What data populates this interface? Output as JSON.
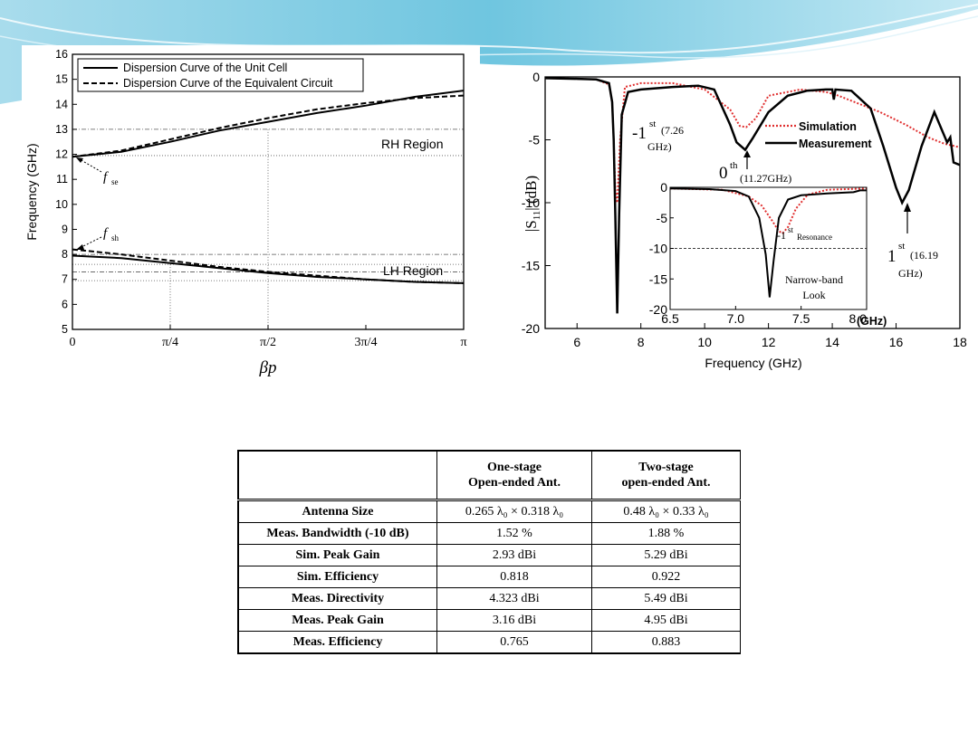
{
  "theme": {
    "banner_colors": [
      "#bfe6f2",
      "#6cc4dd",
      "#2f9fc4"
    ]
  },
  "chart_data": [
    {
      "type": "line",
      "xlabel": "βp",
      "ylabel": "Frequency (GHz)",
      "x_tick_labels": [
        "0",
        "π/4",
        "π/2",
        "3π/4",
        "π"
      ],
      "x_ticks": [
        0,
        0.7854,
        1.5708,
        2.3562,
        3.1416
      ],
      "ylim": [
        5,
        16
      ],
      "xlim": [
        0,
        3.1416
      ],
      "y_ticks": [
        5,
        6,
        7,
        8,
        9,
        10,
        11,
        12,
        13,
        14,
        15,
        16
      ],
      "legend": [
        "Dispersion Curve of the Unit Cell",
        "Dispersion Curve of the Equivalent Circuit"
      ],
      "legend_position": "top-left",
      "annotations": {
        "rh": "RH Region",
        "lh": "LH Region",
        "fse": "se",
        "fsh": "sh",
        "f": "f"
      },
      "series": [
        {
          "name": "Dispersion Curve of the Unit Cell",
          "style": "solid",
          "branches": [
            {
              "x": [
                0,
                0.3927,
                0.7854,
                1.1781,
                1.5708,
                1.9635,
                2.3562,
                2.7489,
                3.1416
              ],
              "y": [
                11.9,
                12.1,
                12.5,
                12.95,
                13.3,
                13.65,
                13.95,
                14.3,
                14.55
              ]
            },
            {
              "x": [
                0,
                0.3927,
                0.7854,
                1.1781,
                1.5708,
                1.9635,
                2.3562,
                2.7489,
                3.1416
              ],
              "y": [
                7.95,
                7.85,
                7.65,
                7.45,
                7.25,
                7.1,
                7.0,
                6.9,
                6.85
              ]
            }
          ]
        },
        {
          "name": "Dispersion Curve of the Equivalent Circuit",
          "style": "dashed",
          "branches": [
            {
              "x": [
                0,
                0.3927,
                0.7854,
                1.1781,
                1.5708,
                1.9635,
                2.3562,
                2.7489,
                3.1416
              ],
              "y": [
                11.9,
                12.15,
                12.6,
                13.05,
                13.45,
                13.8,
                14.05,
                14.25,
                14.35
              ]
            },
            {
              "x": [
                0,
                0.3927,
                0.7854,
                1.1781,
                1.5708,
                1.9635,
                2.3562,
                2.7489,
                3.1416
              ],
              "y": [
                8.2,
                8.0,
                7.75,
                7.5,
                7.3,
                7.15,
                7.0,
                6.9,
                6.85
              ]
            }
          ]
        }
      ],
      "reference_lines_y": [
        13.0,
        11.95,
        8.0,
        7.6,
        7.3,
        6.95
      ],
      "reference_lines_x": [
        0.7854,
        1.5708
      ]
    },
    {
      "type": "line",
      "xlabel": "Frequency (GHz)",
      "ylabel": "|S11| (dB)",
      "ylabel_parts": {
        "main": "|S",
        "sub": "11",
        "end": "| (dB)"
      },
      "xlim": [
        5,
        18
      ],
      "ylim": [
        -20,
        0
      ],
      "x_ticks": [
        6,
        8,
        10,
        12,
        14,
        16,
        18
      ],
      "y_ticks": [
        0,
        -5,
        -10,
        -15,
        -20
      ],
      "legend": [
        "Simulation",
        "Measurement"
      ],
      "legend_position": "top-right",
      "annotations": [
        {
          "text_main": "-1",
          "sup": "st",
          "detail": "(7.26",
          "detail2": "GHz)"
        },
        {
          "text_main": "0",
          "sup": "th",
          "detail": "(11.27GHz)"
        },
        {
          "text_main": "1",
          "sup": "st",
          "detail": "(16.19",
          "detail2": "GHz)"
        }
      ],
      "series": [
        {
          "name": "Measurement",
          "color": "#000000",
          "x": [
            5.0,
            6.0,
            6.6,
            7.0,
            7.1,
            7.15,
            7.2,
            7.26,
            7.32,
            7.4,
            7.6,
            8.0,
            9.0,
            9.8,
            10.3,
            10.8,
            11.0,
            11.27,
            11.5,
            12.0,
            12.6,
            13.2,
            13.8,
            14.0,
            14.05,
            14.1,
            14.6,
            15.2,
            15.6,
            16.0,
            16.19,
            16.4,
            16.8,
            17.2,
            17.6,
            17.7,
            17.8,
            18.0
          ],
          "y": [
            -0.1,
            -0.15,
            -0.2,
            -0.5,
            -2.0,
            -5.0,
            -11.0,
            -18.8,
            -11.0,
            -3.0,
            -1.2,
            -1.0,
            -0.8,
            -0.7,
            -1.0,
            -3.8,
            -5.2,
            -5.8,
            -4.9,
            -2.8,
            -1.5,
            -1.1,
            -1.0,
            -1.0,
            -1.8,
            -1.0,
            -1.1,
            -2.5,
            -5.5,
            -8.8,
            -10.0,
            -9.0,
            -5.5,
            -2.8,
            -5.2,
            -4.8,
            -6.8,
            -7.0
          ]
        },
        {
          "name": "Simulation",
          "color": "#e03030",
          "x": [
            5.0,
            6.0,
            6.6,
            7.0,
            7.1,
            7.15,
            7.2,
            7.26,
            7.35,
            7.5,
            8.0,
            9.0,
            10.0,
            10.8,
            11.1,
            11.3,
            11.6,
            12.0,
            13.0,
            13.8,
            14.1,
            14.5,
            15.5,
            16.3,
            17.0,
            17.5,
            18.0
          ],
          "y": [
            -0.1,
            -0.15,
            -0.2,
            -0.6,
            -2.0,
            -5.0,
            -9.0,
            -10.0,
            -5.0,
            -0.8,
            -0.5,
            -0.5,
            -1.0,
            -2.6,
            -3.9,
            -4.0,
            -3.3,
            -1.5,
            -1.0,
            -1.2,
            -1.4,
            -1.8,
            -2.8,
            -3.8,
            -4.8,
            -5.3,
            -5.6
          ]
        }
      ],
      "inset": {
        "xlim": [
          6.5,
          8.0
        ],
        "ylim": [
          -20,
          0
        ],
        "x_ticks": [
          6.5,
          7.0,
          7.5,
          8.0
        ],
        "x_tick_labels": [
          "6.5",
          "7.0",
          "7.5",
          "8.0"
        ],
        "y_ticks": [
          0,
          -5,
          -10,
          -15,
          -20
        ],
        "x_unit": "(GHz)",
        "reference_line_y": -10,
        "labels": {
          "res_main": "-1",
          "res_sup": "st",
          "res_word": "Resonance",
          "note1": "Narrow-band",
          "note2": "Look"
        },
        "series": [
          {
            "name": "Measurement",
            "color": "#000000",
            "x": [
              6.5,
              6.8,
              7.0,
              7.1,
              7.18,
              7.23,
              7.26,
              7.29,
              7.33,
              7.4,
              7.5,
              7.7,
              7.9,
              7.95,
              8.0
            ],
            "y": [
              -0.2,
              -0.3,
              -0.6,
              -1.5,
              -5.0,
              -11.0,
              -18.0,
              -12.0,
              -5.0,
              -2.0,
              -1.3,
              -1.0,
              -0.8,
              -0.5,
              -0.5
            ]
          },
          {
            "name": "Simulation",
            "color": "#e03030",
            "x": [
              6.5,
              6.9,
              7.1,
              7.2,
              7.28,
              7.33,
              7.36,
              7.4,
              7.46,
              7.55,
              7.7,
              8.0
            ],
            "y": [
              -0.2,
              -0.4,
              -1.5,
              -3.0,
              -5.5,
              -7.2,
              -7.5,
              -6.5,
              -3.5,
              -1.2,
              -0.4,
              -0.2
            ]
          }
        ]
      }
    }
  ],
  "table": {
    "headers": [
      {
        "l1": "",
        "l2": ""
      },
      {
        "l1": "One-stage",
        "l2": "Open-ended Ant."
      },
      {
        "l1": "Two-stage",
        "l2": "open-ended Ant."
      }
    ],
    "rows": [
      {
        "label": "Antenna Size",
        "c1": "0.265 λ₀ × 0.318 λ₀",
        "c2": "0.48 λ₀ × 0.33 λ₀"
      },
      {
        "label": "Meas. Bandwidth (-10 dB)",
        "c1": "1.52 %",
        "c2": "1.88 %"
      },
      {
        "label": "Sim. Peak Gain",
        "c1": "2.93 dBi",
        "c2": "5.29 dBi"
      },
      {
        "label": "Sim. Efficiency",
        "c1": "0.818",
        "c2": "0.922"
      },
      {
        "label": "Meas. Directivity",
        "c1": "4.323 dBi",
        "c2": "5.49 dBi"
      },
      {
        "label": "Meas. Peak Gain",
        "c1": "3.16 dBi",
        "c2": "4.95 dBi"
      },
      {
        "label": "Meas. Efficiency",
        "c1": "0.765",
        "c2": "0.883"
      }
    ]
  }
}
